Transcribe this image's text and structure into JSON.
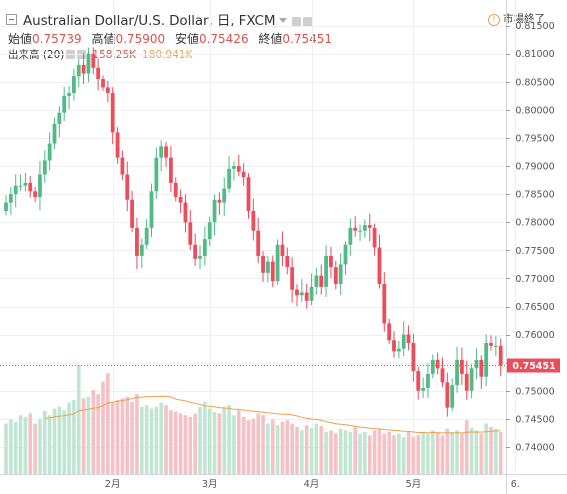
{
  "header": {
    "title": "Australian Dollar/U.S. Dollar, 日, FXCM",
    "ohlc": [
      {
        "label": "始値",
        "value": "0.75739"
      },
      {
        "label": "高値",
        "value": "0.75900"
      },
      {
        "label": "安値",
        "value": "0.75426"
      },
      {
        "label": "終値",
        "value": "0.75451"
      }
    ],
    "volume_label": "出来高 (20)",
    "volume_value": "158.25K",
    "volume_ma_value": "180.941K",
    "market_status": "市場終了",
    "market_icon": "!"
  },
  "colors": {
    "up": "#53b987",
    "down": "#eb4d5c",
    "up_volume": "#bfe6d2",
    "down_volume": "#f6c0c5",
    "ma": "#f0a04b",
    "last_price": "#eb4d5c"
  },
  "chart_data": {
    "type": "candlestick",
    "y_axis": {
      "min": 0.7375,
      "max": 0.816,
      "ticks": [
        "0.81500",
        "0.81000",
        "0.80500",
        "0.80000",
        "0.79500",
        "0.79000",
        "0.78500",
        "0.78000",
        "0.77500",
        "0.77000",
        "0.76500",
        "0.76000",
        "0.75500",
        "0.75000",
        "0.74500",
        "0.74000"
      ]
    },
    "x_axis": {
      "labels": [
        {
          "index": 22,
          "text": "2月"
        },
        {
          "index": 42,
          "text": "3月"
        },
        {
          "index": 63,
          "text": "4月"
        },
        {
          "index": 84,
          "text": "5月"
        },
        {
          "index": 105,
          "text": "6."
        }
      ]
    },
    "last_price": "0.75451",
    "closes": [
      0.7835,
      0.785,
      0.7865,
      0.7865,
      0.787,
      0.7855,
      0.7845,
      0.7885,
      0.791,
      0.794,
      0.7975,
      0.7995,
      0.8025,
      0.803,
      0.806,
      0.808,
      0.8065,
      0.81,
      0.8075,
      0.8055,
      0.804,
      0.803,
      0.796,
      0.7915,
      0.7885,
      0.784,
      0.779,
      0.774,
      0.776,
      0.779,
      0.7855,
      0.7915,
      0.7935,
      0.7915,
      0.787,
      0.7845,
      0.7835,
      0.78,
      0.776,
      0.7735,
      0.774,
      0.777,
      0.78,
      0.784,
      0.7835,
      0.786,
      0.7895,
      0.79,
      0.789,
      0.788,
      0.782,
      0.7785,
      0.774,
      0.771,
      0.773,
      0.7695,
      0.776,
      0.774,
      0.772,
      0.768,
      0.767,
      0.7675,
      0.766,
      0.7685,
      0.7705,
      0.7685,
      0.774,
      0.772,
      0.769,
      0.7725,
      0.776,
      0.779,
      0.7785,
      0.7785,
      0.7795,
      0.779,
      0.7755,
      0.769,
      0.762,
      0.759,
      0.757,
      0.7575,
      0.76,
      0.7585,
      0.7535,
      0.75,
      0.7505,
      0.753,
      0.7555,
      0.754,
      0.7515,
      0.747,
      0.751,
      0.7555,
      0.753,
      0.75,
      0.754,
      0.7555,
      0.7525,
      0.7585,
      0.758,
      0.758,
      0.7545
    ],
    "volumes": [
      60,
      65,
      62,
      70,
      68,
      72,
      60,
      66,
      75,
      70,
      78,
      80,
      76,
      85,
      88,
      130,
      90,
      92,
      100,
      95,
      110,
      120,
      85,
      88,
      90,
      92,
      86,
      95,
      80,
      82,
      78,
      80,
      85,
      82,
      76,
      74,
      72,
      70,
      68,
      72,
      80,
      86,
      78,
      74,
      72,
      80,
      82,
      70,
      76,
      68,
      64,
      66,
      72,
      70,
      60,
      65,
      58,
      62,
      64,
      60,
      56,
      52,
      58,
      55,
      60,
      57,
      50,
      52,
      48,
      54,
      52,
      50,
      56,
      48,
      50,
      46,
      52,
      54,
      48,
      50,
      46,
      48,
      44,
      50,
      44,
      46,
      50,
      48,
      52,
      50,
      46,
      54,
      50,
      52,
      48,
      64,
      55,
      52,
      48,
      60,
      56,
      54,
      50
    ]
  }
}
